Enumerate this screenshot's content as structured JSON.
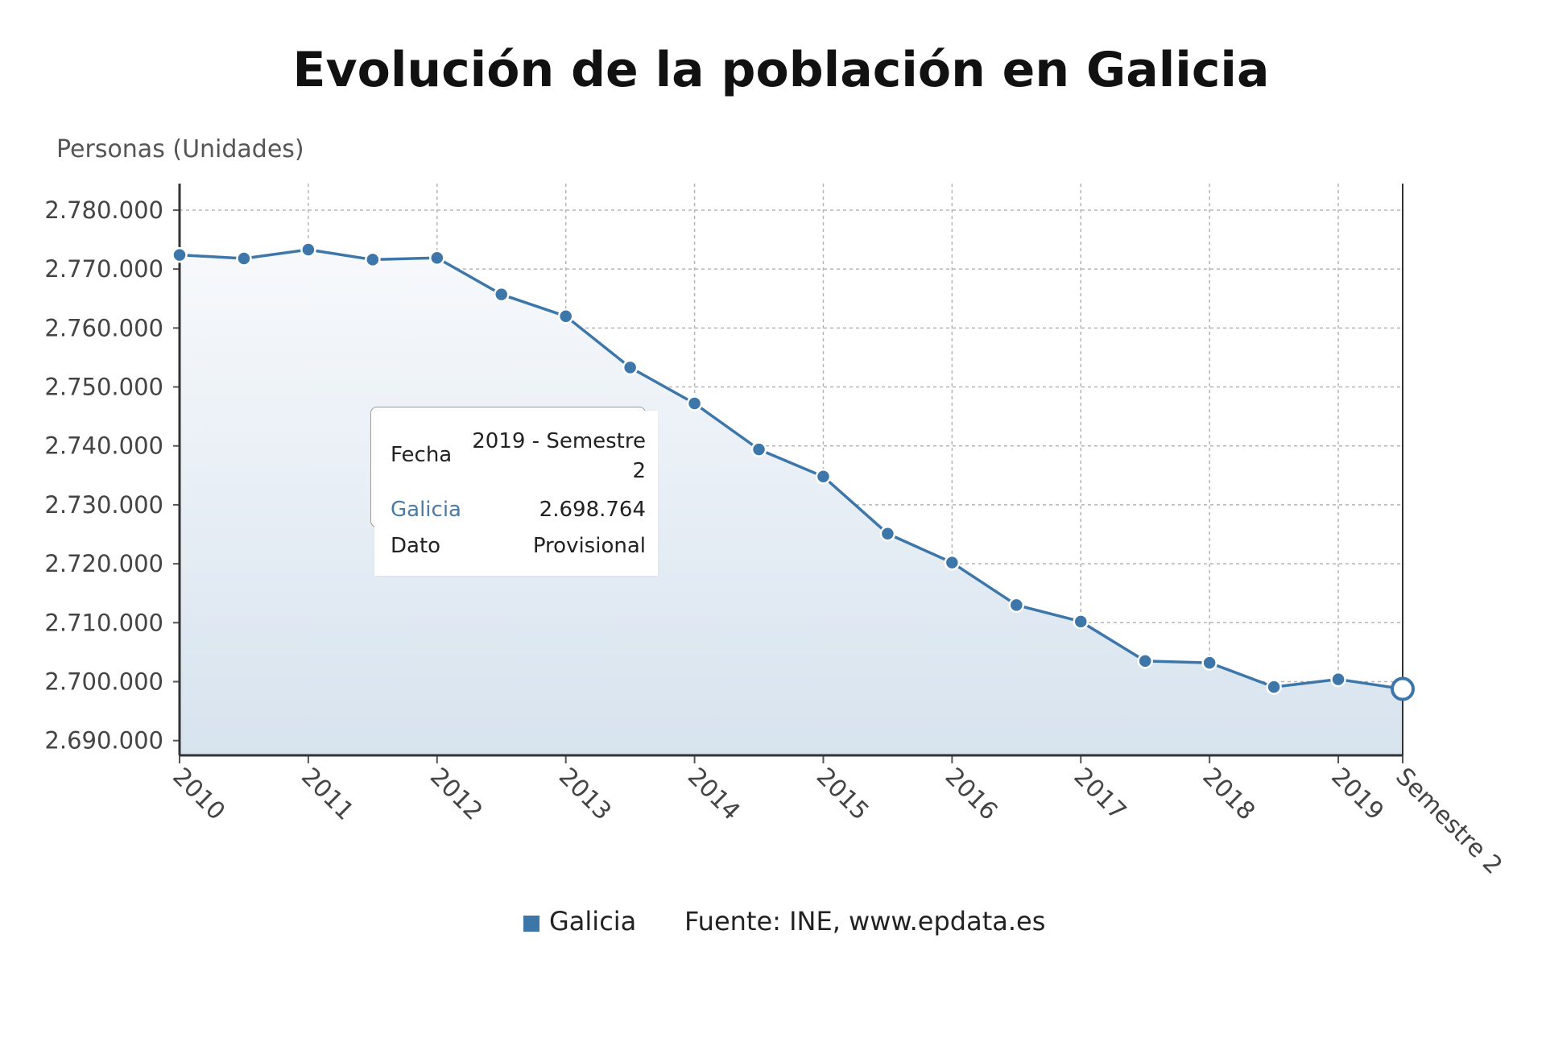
{
  "chart_data": {
    "type": "area",
    "title": "Evolución de la población en Galicia",
    "ylabel": "Personas (Unidades)",
    "xlabel": "",
    "ylim": [
      2687500,
      2784500
    ],
    "y_ticks": [
      2690000,
      2700000,
      2710000,
      2720000,
      2730000,
      2740000,
      2750000,
      2760000,
      2770000,
      2780000
    ],
    "y_tick_labels": [
      "2.690.000",
      "2.700.000",
      "2.710.000",
      "2.720.000",
      "2.730.000",
      "2.740.000",
      "2.750.000",
      "2.760.000",
      "2.770.000",
      "2.780.000"
    ],
    "x_tick_labels": [
      "2010",
      "2011",
      "2012",
      "2013",
      "2014",
      "2015",
      "2016",
      "2017",
      "2018",
      "2019",
      "Semestre 2"
    ],
    "x": [
      "2010 - Semestre 1",
      "2010 - Semestre 2",
      "2011 - Semestre 1",
      "2011 - Semestre 2",
      "2012 - Semestre 1",
      "2012 - Semestre 2",
      "2013 - Semestre 1",
      "2013 - Semestre 2",
      "2014 - Semestre 1",
      "2014 - Semestre 2",
      "2015 - Semestre 1",
      "2015 - Semestre 2",
      "2016 - Semestre 1",
      "2016 - Semestre 2",
      "2017 - Semestre 1",
      "2017 - Semestre 2",
      "2018 - Semestre 1",
      "2018 - Semestre 2",
      "2019 - Semestre 1",
      "2019 - Semestre 2"
    ],
    "series": [
      {
        "name": "Galicia",
        "color": "#3d76a9",
        "values": [
          2772400,
          2771800,
          2773300,
          2771600,
          2771900,
          2765700,
          2762000,
          2753300,
          2747200,
          2739400,
          2734800,
          2725100,
          2720200,
          2713000,
          2710200,
          2703500,
          2703200,
          2699100,
          2700400,
          2698764
        ]
      }
    ],
    "grid": true,
    "legend": "bottom-center",
    "highlighted_index": 19,
    "source": "Fuente: INE, www.epdata.es"
  },
  "tooltip": {
    "fecha_label": "Fecha",
    "fecha_value": "2019 - Semestre 2",
    "series_label": "Galicia",
    "series_value": "2.698.764",
    "dato_label": "Dato",
    "dato_value": "Provisional"
  }
}
